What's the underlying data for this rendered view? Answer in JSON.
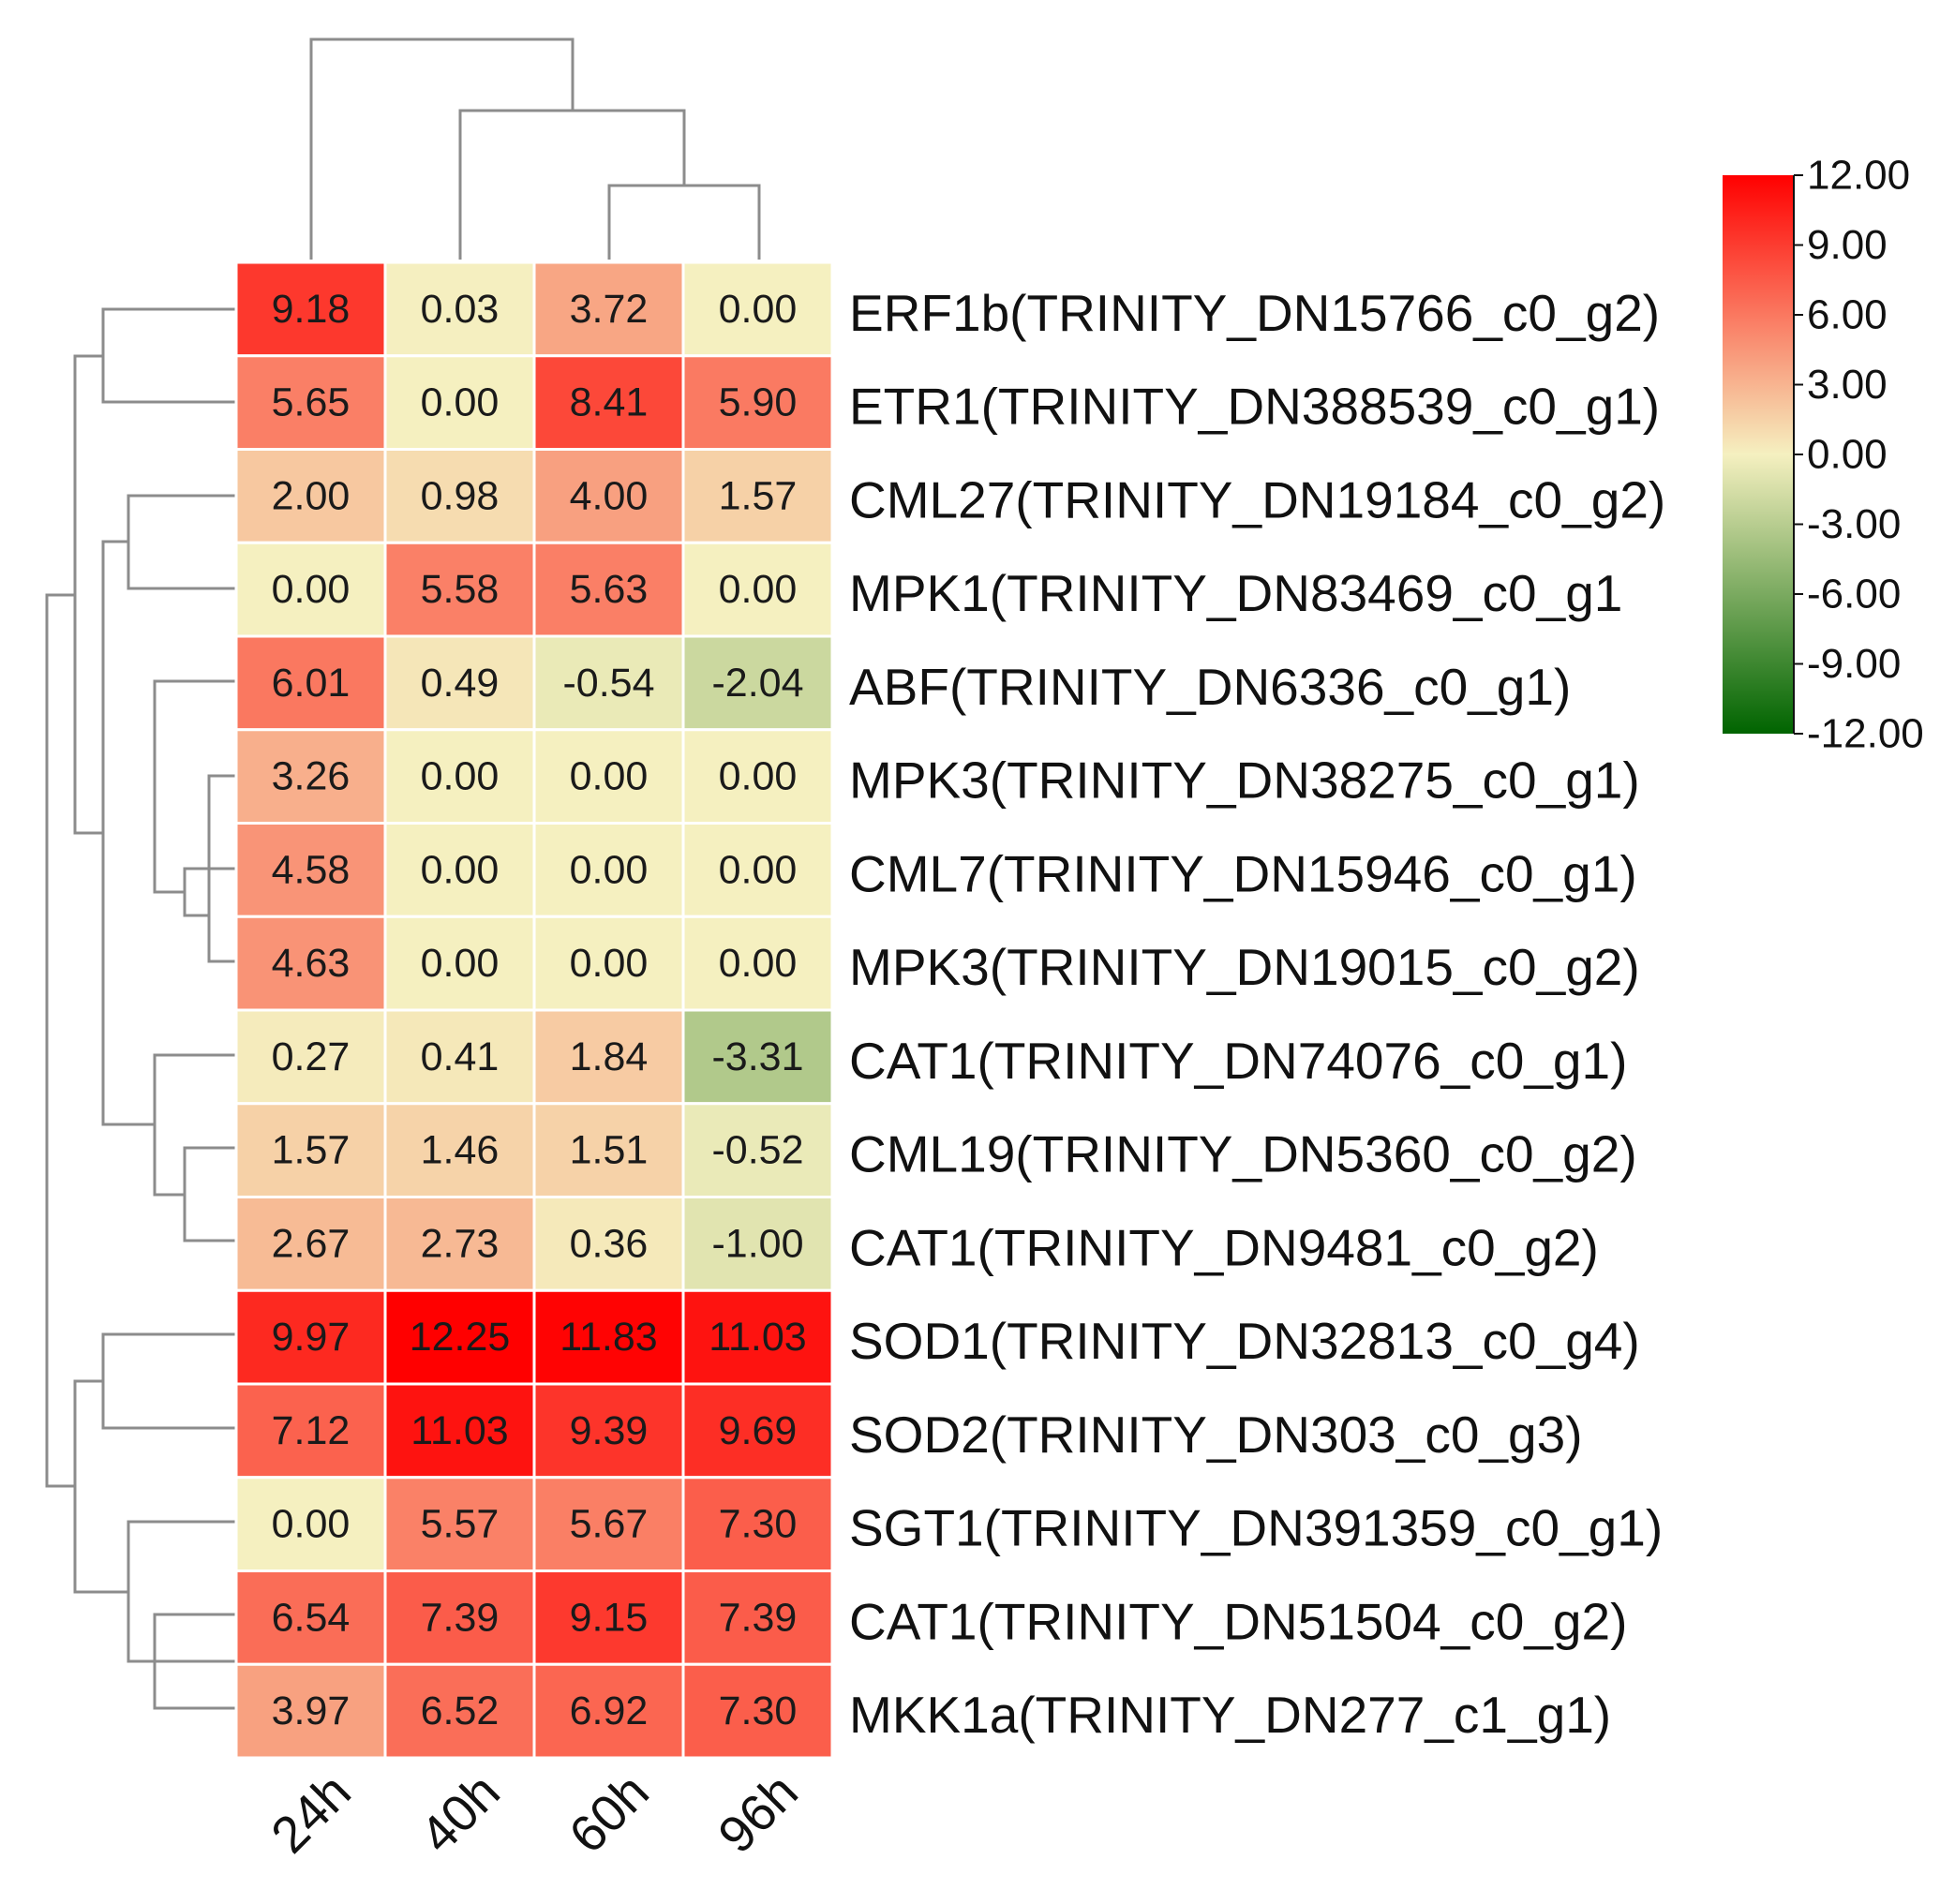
{
  "chart_data": {
    "type": "heatmap",
    "title": "",
    "columns": [
      "24h",
      "40h",
      "60h",
      "96h"
    ],
    "rows": [
      {
        "label": "ERF1b(TRINITY_DN15766_c0_g2)",
        "values": [
          9.18,
          0.03,
          3.72,
          0.0
        ],
        "text": [
          "9.18",
          "0.03",
          "3.72",
          "0.00"
        ]
      },
      {
        "label": "ETR1(TRINITY_DN388539_c0_g1)",
        "values": [
          5.65,
          0.0,
          8.41,
          5.9
        ],
        "text": [
          "5.65",
          "0.00",
          "8.41",
          "5.90"
        ]
      },
      {
        "label": "CML27(TRINITY_DN19184_c0_g2)",
        "values": [
          2.0,
          0.98,
          4.0,
          1.57
        ],
        "text": [
          "2.00",
          "0.98",
          "4.00",
          "1.57"
        ]
      },
      {
        "label": "MPK1(TRINITY_DN83469_c0_g1",
        "values": [
          0.0,
          5.58,
          5.63,
          0.0
        ],
        "text": [
          "0.00",
          "5.58",
          "5.63",
          "0.00"
        ]
      },
      {
        "label": "ABF(TRINITY_DN6336_c0_g1)",
        "values": [
          6.01,
          0.49,
          -0.54,
          -2.04
        ],
        "text": [
          "6.01",
          "0.49",
          "-0.54",
          "-2.04"
        ]
      },
      {
        "label": "MPK3(TRINITY_DN38275_c0_g1)",
        "values": [
          3.26,
          0.0,
          0.0,
          0.0
        ],
        "text": [
          "3.26",
          "0.00",
          "0.00",
          "0.00"
        ]
      },
      {
        "label": "CML7(TRINITY_DN15946_c0_g1)",
        "values": [
          4.58,
          0.0,
          0.0,
          0.0
        ],
        "text": [
          "4.58",
          "0.00",
          "0.00",
          "0.00"
        ]
      },
      {
        "label": "MPK3(TRINITY_DN19015_c0_g2)",
        "values": [
          4.63,
          0.0,
          0.0,
          0.0
        ],
        "text": [
          "4.63",
          "0.00",
          "0.00",
          "0.00"
        ]
      },
      {
        "label": "CAT1(TRINITY_DN74076_c0_g1)",
        "values": [
          0.27,
          0.41,
          1.84,
          -3.31
        ],
        "text": [
          "0.27",
          "0.41",
          "1.84",
          "-3.31"
        ]
      },
      {
        "label": "CML19(TRINITY_DN5360_c0_g2)",
        "values": [
          1.57,
          1.46,
          1.51,
          -0.52
        ],
        "text": [
          "1.57",
          "1.46",
          "1.51",
          "-0.52"
        ]
      },
      {
        "label": "CAT1(TRINITY_DN9481_c0_g2)",
        "values": [
          2.67,
          2.73,
          0.36,
          -1.0
        ],
        "text": [
          "2.67",
          "2.73",
          "0.36",
          "-1.00"
        ]
      },
      {
        "label": "SOD1(TRINITY_DN32813_c0_g4)",
        "values": [
          9.97,
          12.25,
          11.83,
          11.03
        ],
        "text": [
          "9.97",
          "12.25",
          "11.83",
          "11.03"
        ]
      },
      {
        "label": "SOD2(TRINITY_DN303_c0_g3)",
        "values": [
          7.12,
          11.03,
          9.39,
          9.69
        ],
        "text": [
          "7.12",
          "11.03",
          "9.39",
          "9.69"
        ]
      },
      {
        "label": "SGT1(TRINITY_DN391359_c0_g1)",
        "values": [
          0.0,
          5.57,
          5.67,
          7.3
        ],
        "text": [
          "0.00",
          "5.57",
          "5.67",
          "7.30"
        ]
      },
      {
        "label": "CAT1(TRINITY_DN51504_c0_g2)",
        "values": [
          6.54,
          7.39,
          9.15,
          7.39
        ],
        "text": [
          "6.54",
          "7.39",
          "9.15",
          "7.39"
        ]
      },
      {
        "label": "MKK1a(TRINITY_DN277_c1_g1)",
        "values": [
          3.97,
          6.52,
          6.92,
          7.3
        ],
        "text": [
          "3.97",
          "6.52",
          "6.92",
          "7.30"
        ]
      }
    ],
    "color_scale": {
      "min": -12,
      "max": 12,
      "low_color": "#006400",
      "mid_color": "#f5f0c0",
      "high_color": "#ff0000",
      "ticks": [
        "12.00",
        "9.00",
        "6.00",
        "3.00",
        "0.00",
        "-3.00",
        "-6.00",
        "-9.00",
        "-12.00"
      ],
      "position": "right"
    },
    "column_dendrogram": "((24h),((40h),(60h,96h)))",
    "row_dendrogram": "((((ERF1b,ETR1),((CML27,MPK1),(ABF,(MPK3_38275,(CML7,MPK3_19015))),(CAT1_74076,(CML19,CAT1_9481)))),((SOD1,SOD2),(SGT1,(CAT1_51504,MKK1a)))))"
  }
}
